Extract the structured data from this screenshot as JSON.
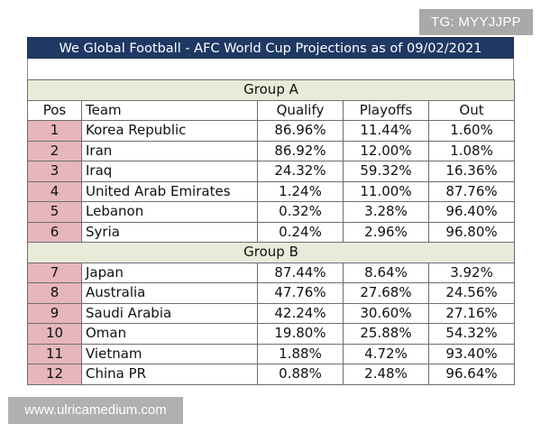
{
  "title": "We Global Football - AFC World Cup Projections as of 09/02/2021",
  "watermarks": {
    "top_right": "TG: MYYJJPP",
    "bottom_left": "www.ulricamedium.com"
  },
  "colors": {
    "title_bg": "#1f3864",
    "group_header_bg": "#e9ead9",
    "position_cell_bg": "#e6b6bc"
  },
  "columns": {
    "pos": "Pos",
    "team": "Team",
    "qualify": "Qualify",
    "playoffs": "Playoffs",
    "out": "Out"
  },
  "groups": [
    {
      "name": "Group A",
      "rows": [
        {
          "pos": "1",
          "team": "Korea Republic",
          "qualify": "86.96%",
          "playoffs": "11.44%",
          "out": "1.60%"
        },
        {
          "pos": "2",
          "team": "Iran",
          "qualify": "86.92%",
          "playoffs": "12.00%",
          "out": "1.08%"
        },
        {
          "pos": "3",
          "team": "Iraq",
          "qualify": "24.32%",
          "playoffs": "59.32%",
          "out": "16.36%"
        },
        {
          "pos": "4",
          "team": "United Arab Emirates",
          "qualify": "1.24%",
          "playoffs": "11.00%",
          "out": "87.76%"
        },
        {
          "pos": "5",
          "team": "Lebanon",
          "qualify": "0.32%",
          "playoffs": "3.28%",
          "out": "96.40%"
        },
        {
          "pos": "6",
          "team": "Syria",
          "qualify": "0.24%",
          "playoffs": "2.96%",
          "out": "96.80%"
        }
      ]
    },
    {
      "name": "Group B",
      "rows": [
        {
          "pos": "7",
          "team": "Japan",
          "qualify": "87.44%",
          "playoffs": "8.64%",
          "out": "3.92%"
        },
        {
          "pos": "8",
          "team": "Australia",
          "qualify": "47.76%",
          "playoffs": "27.68%",
          "out": "24.56%"
        },
        {
          "pos": "9",
          "team": "Saudi Arabia",
          "qualify": "42.24%",
          "playoffs": "30.60%",
          "out": "27.16%"
        },
        {
          "pos": "10",
          "team": "Oman",
          "qualify": "19.80%",
          "playoffs": "25.88%",
          "out": "54.32%"
        },
        {
          "pos": "11",
          "team": "Vietnam",
          "qualify": "1.88%",
          "playoffs": "4.72%",
          "out": "93.40%"
        },
        {
          "pos": "12",
          "team": "China PR",
          "qualify": "0.88%",
          "playoffs": "2.48%",
          "out": "96.64%"
        }
      ]
    }
  ]
}
